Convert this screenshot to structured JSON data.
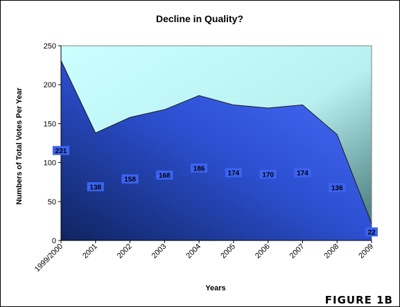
{
  "figure_label": "FIGURE 1B",
  "chart_data": {
    "type": "area",
    "title": "Decline in Quality?",
    "xlabel": "Years",
    "ylabel": "Numbers of Total Votes Per Year",
    "categories": [
      "1999/2000",
      "2001",
      "2002",
      "2003",
      "2004",
      "2005",
      "2006",
      "2007",
      "2008",
      "2009"
    ],
    "values": [
      231,
      138,
      158,
      168,
      186,
      174,
      170,
      174,
      136,
      22
    ],
    "ylim": [
      0,
      250
    ],
    "yticks": [
      0,
      50,
      100,
      150,
      200,
      250
    ],
    "grid": false,
    "legend": "none",
    "colors": {
      "area_top": "#3b63f2",
      "area_bottom": "#0f2460",
      "plot_bg_top": "#ccffff",
      "plot_bg_bottom": "#3d6e6e",
      "label_bg": "#3b63f2"
    }
  }
}
